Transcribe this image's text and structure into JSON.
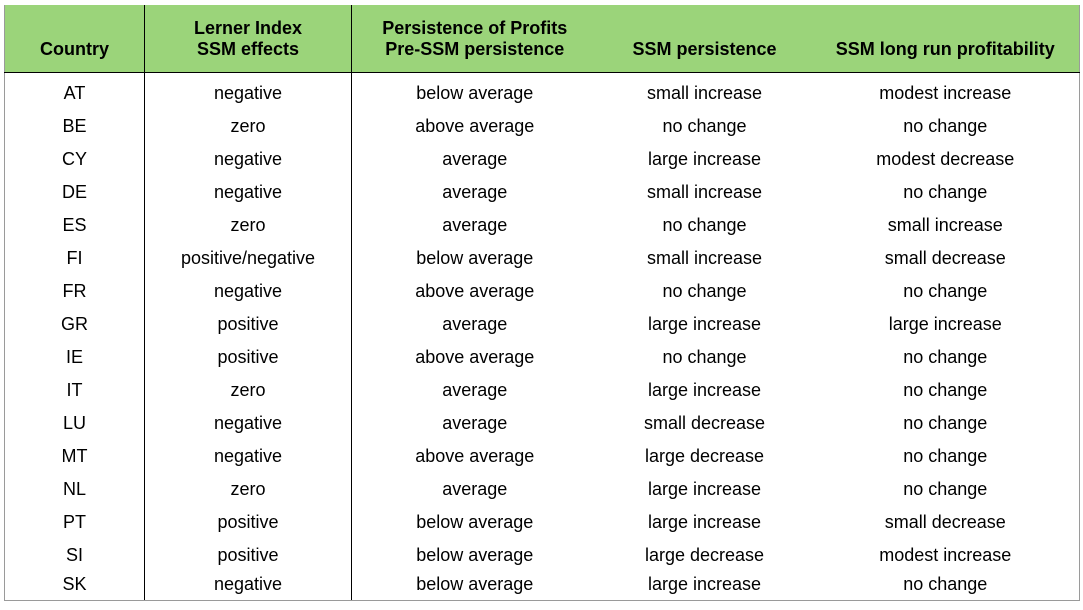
{
  "table": {
    "header_row1": [
      "",
      "Lerner Index",
      "Persistence of Profits",
      "",
      ""
    ],
    "header_row2": [
      "Country",
      "SSM effects",
      "Pre-SSM persistence",
      "SSM persistence",
      "SSM long run profitability"
    ],
    "rows": [
      [
        "AT",
        "negative",
        "below average",
        "small increase",
        "modest increase"
      ],
      [
        "BE",
        "zero",
        "above average",
        "no change",
        "no change"
      ],
      [
        "CY",
        "negative",
        "average",
        "large increase",
        "modest decrease"
      ],
      [
        "DE",
        "negative",
        "average",
        "small increase",
        "no change"
      ],
      [
        "ES",
        "zero",
        "average",
        "no change",
        "small increase"
      ],
      [
        "FI",
        "positive/negative",
        "below average",
        "small increase",
        "small decrease"
      ],
      [
        "FR",
        "negative",
        "above average",
        "no change",
        "no change"
      ],
      [
        "GR",
        "positive",
        "average",
        "large increase",
        "large increase"
      ],
      [
        "IE",
        "positive",
        "above average",
        "no change",
        "no change"
      ],
      [
        "IT",
        "zero",
        "average",
        "large increase",
        "no change"
      ],
      [
        "LU",
        "negative",
        "average",
        "small decrease",
        "no change"
      ],
      [
        "MT",
        "negative",
        "above average",
        "large decrease",
        "no change"
      ],
      [
        "NL",
        "zero",
        "average",
        "large increase",
        "no change"
      ],
      [
        "PT",
        "positive",
        "below average",
        "large increase",
        "small decrease"
      ],
      [
        "SI",
        "positive",
        "below average",
        "large decrease",
        "modest increase"
      ],
      [
        "SK",
        "negative",
        "below average",
        "large increase",
        "no change"
      ]
    ]
  },
  "colors": {
    "header_background": "#9bd47a"
  }
}
